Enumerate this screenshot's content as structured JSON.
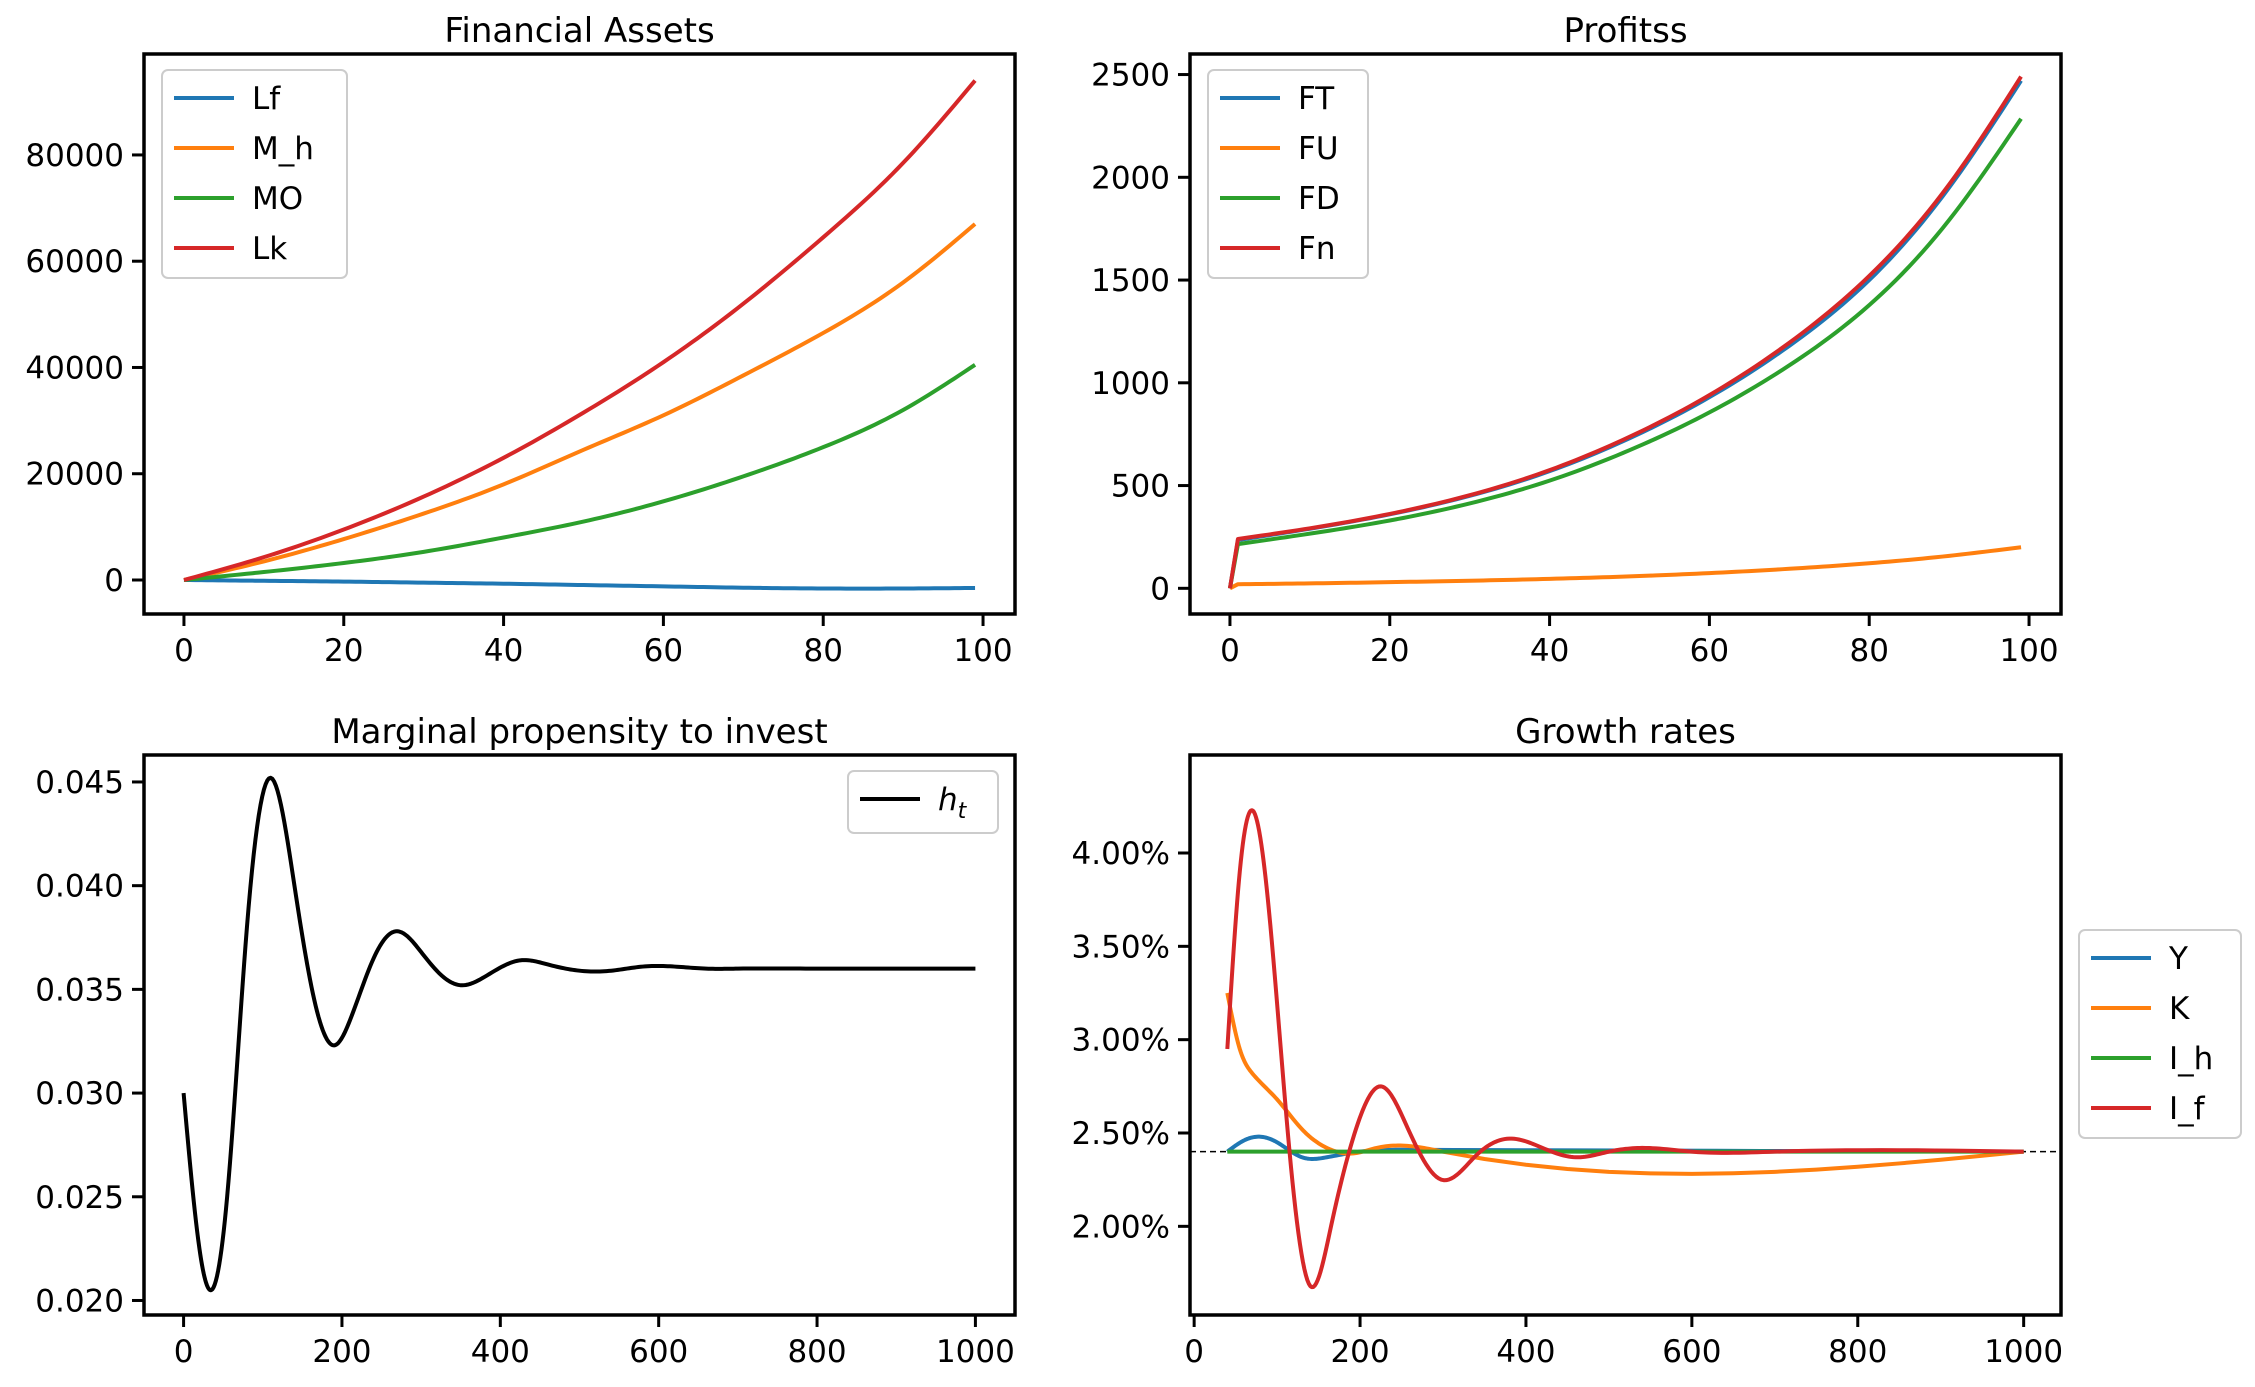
{
  "colors": {
    "blue": "#1f77b4",
    "orange": "#ff7f0e",
    "green": "#2ca02c",
    "red": "#d62728",
    "black": "#000000"
  },
  "chart_data": [
    {
      "type": "line",
      "title": "Financial Assets",
      "xlim": [
        -5,
        104
      ],
      "ylim": [
        -6400,
        99000
      ],
      "xticks": [
        0,
        20,
        40,
        60,
        80,
        100
      ],
      "yticks": [
        0,
        20000,
        40000,
        60000,
        80000
      ],
      "legend": "upper-left",
      "series": [
        {
          "name": "Lf",
          "color": "#1f77b4",
          "x": [
            0,
            10,
            20,
            30,
            40,
            50,
            60,
            70,
            80,
            90,
            99
          ],
          "values": [
            0,
            -150,
            -300,
            -500,
            -700,
            -950,
            -1200,
            -1450,
            -1600,
            -1600,
            -1500
          ]
        },
        {
          "name": "M_h",
          "color": "#ff7f0e",
          "x": [
            0,
            10,
            20,
            30,
            40,
            50,
            60,
            70,
            80,
            90,
            99
          ],
          "values": [
            0,
            3500,
            7700,
            12500,
            18000,
            24500,
            31000,
            38500,
            46500,
            56000,
            67000
          ]
        },
        {
          "name": "MO",
          "color": "#2ca02c",
          "x": [
            0,
            10,
            20,
            30,
            40,
            50,
            60,
            70,
            80,
            90,
            99
          ],
          "values": [
            0,
            1500,
            3200,
            5300,
            8000,
            11000,
            14800,
            19500,
            25000,
            32000,
            40500
          ]
        },
        {
          "name": "Lk",
          "color": "#d62728",
          "x": [
            0,
            10,
            20,
            30,
            40,
            50,
            60,
            70,
            80,
            90,
            99
          ],
          "values": [
            0,
            4300,
            9500,
            15700,
            23000,
            31500,
            41000,
            52000,
            64500,
            78500,
            94000
          ]
        }
      ]
    },
    {
      "type": "line",
      "title": "Profitss",
      "xlim": [
        -5,
        104
      ],
      "ylim": [
        -125,
        2600
      ],
      "xticks": [
        0,
        20,
        40,
        60,
        80,
        100
      ],
      "yticks": [
        0,
        500,
        1000,
        1500,
        2000,
        2500
      ],
      "legend": "upper-left",
      "series": [
        {
          "name": "FT",
          "color": "#1f77b4",
          "x": [
            0,
            1,
            10,
            20,
            30,
            40,
            50,
            60,
            70,
            80,
            90,
            99
          ],
          "values": [
            0,
            235,
            290,
            360,
            450,
            570,
            730,
            930,
            1180,
            1500,
            1950,
            2470
          ]
        },
        {
          "name": "FU",
          "color": "#ff7f0e",
          "x": [
            0,
            1,
            10,
            20,
            30,
            40,
            50,
            60,
            70,
            80,
            90,
            99
          ],
          "values": [
            0,
            20,
            24,
            30,
            37,
            46,
            58,
            74,
            95,
            122,
            158,
            200
          ]
        },
        {
          "name": "FD",
          "color": "#2ca02c",
          "x": [
            0,
            1,
            10,
            20,
            30,
            40,
            50,
            60,
            70,
            80,
            90,
            99
          ],
          "values": [
            0,
            215,
            266,
            330,
            413,
            524,
            672,
            856,
            1085,
            1378,
            1792,
            2285
          ]
        },
        {
          "name": "Fn",
          "color": "#d62728",
          "x": [
            0,
            1,
            10,
            20,
            30,
            40,
            50,
            60,
            70,
            80,
            90,
            99
          ],
          "values": [
            0,
            240,
            292,
            362,
            453,
            575,
            737,
            940,
            1195,
            1520,
            1965,
            2490
          ]
        }
      ]
    },
    {
      "type": "line",
      "title": "Marginal propensity to invest",
      "xlim": [
        -50,
        1050
      ],
      "ylim": [
        0.0193,
        0.0463
      ],
      "xticks": [
        0,
        200,
        400,
        600,
        800,
        1000
      ],
      "yticks": [
        "0.020",
        "0.025",
        "0.030",
        "0.035",
        "0.040",
        "0.045"
      ],
      "legend": "upper-right",
      "series": [
        {
          "name": "h_t",
          "color": "#000000",
          "x": [
            0,
            20,
            35,
            55,
            80,
            110,
            140,
            165,
            190,
            210,
            240,
            268,
            300,
            325,
            350,
            380,
            425,
            460,
            500,
            540,
            580,
            620,
            660,
            700,
            800,
            900,
            1000
          ],
          "values": [
            0.03,
            0.0225,
            0.0205,
            0.025,
            0.038,
            0.0452,
            0.04,
            0.0345,
            0.0323,
            0.0335,
            0.0365,
            0.0378,
            0.0368,
            0.0357,
            0.0352,
            0.0356,
            0.0364,
            0.0362,
            0.0359,
            0.0359,
            0.0361,
            0.0361,
            0.036,
            0.036,
            0.036,
            0.036,
            0.036
          ]
        }
      ]
    },
    {
      "type": "line",
      "title": "Growth rates",
      "xlim": [
        -5,
        1045
      ],
      "ylim": [
        1.525,
        4.525
      ],
      "xticks": [
        0,
        200,
        400,
        600,
        800,
        1000
      ],
      "yticks": [
        "2.00%",
        "2.50%",
        "3.00%",
        "3.50%",
        "4.00%"
      ],
      "legend": "outside-right",
      "reference_line": 2.4,
      "series": [
        {
          "name": "Y",
          "color": "#1f77b4",
          "x": [
            40,
            60,
            80,
            100,
            130,
            160,
            200,
            260,
            1000
          ],
          "values": [
            2.4,
            2.46,
            2.48,
            2.45,
            2.37,
            2.37,
            2.4,
            2.41,
            2.4
          ]
        },
        {
          "name": "K",
          "color": "#ff7f0e",
          "x": [
            40,
            55,
            70,
            100,
            130,
            160,
            190,
            220,
            260,
            300,
            1000
          ],
          "values": [
            3.25,
            2.95,
            2.82,
            2.68,
            2.52,
            2.42,
            2.39,
            2.42,
            2.43,
            2.4,
            2.4
          ]
        },
        {
          "name": "I_h",
          "color": "#2ca02c",
          "x": [
            40,
            1000
          ],
          "values": [
            2.4,
            2.4
          ]
        },
        {
          "name": "I_f",
          "color": "#d62728",
          "x": [
            40,
            55,
            72,
            90,
            115,
            140,
            165,
            195,
            225,
            255,
            298,
            340,
            380,
            420,
            460,
            500,
            540,
            600,
            700,
            1000
          ],
          "values": [
            2.95,
            3.9,
            4.22,
            3.7,
            2.4,
            1.68,
            2.0,
            2.52,
            2.75,
            2.55,
            2.25,
            2.38,
            2.47,
            2.42,
            2.37,
            2.4,
            2.42,
            2.4,
            2.4,
            2.4
          ]
        }
      ]
    }
  ]
}
